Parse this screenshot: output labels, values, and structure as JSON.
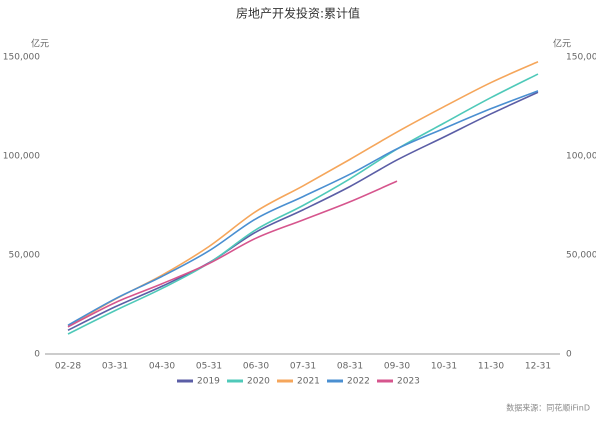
{
  "chart_data": {
    "type": "line",
    "title": "房地产开发投资:累计值",
    "y_unit": "亿元",
    "y2_unit": "亿元",
    "categories": [
      "02-28",
      "03-31",
      "04-30",
      "05-31",
      "06-30",
      "07-31",
      "08-31",
      "09-30",
      "10-31",
      "11-30",
      "12-31"
    ],
    "series": [
      {
        "name": "2019",
        "color": "#5b5ea6",
        "values": [
          12000,
          23800,
          34200,
          46100,
          61600,
          72800,
          84600,
          98000,
          109600,
          121300,
          132200
        ]
      },
      {
        "name": "2020",
        "color": "#4fc9b9",
        "values": [
          10100,
          21900,
          33100,
          45900,
          62800,
          75000,
          88500,
          103500,
          116600,
          129500,
          141400
        ]
      },
      {
        "name": "2021",
        "color": "#f5a65b",
        "values": [
          13900,
          27600,
          39800,
          54300,
          72000,
          84900,
          98300,
          112100,
          124900,
          137100,
          147600
        ]
      },
      {
        "name": "2022",
        "color": "#4a8fd1",
        "values": [
          14500,
          27800,
          39200,
          52100,
          68300,
          79500,
          90800,
          103600,
          113900,
          123900,
          132900
        ]
      },
      {
        "name": "2023",
        "color": "#d6558d",
        "values": [
          13700,
          25900,
          35500,
          45700,
          58500,
          67700,
          76900,
          87300,
          null,
          null,
          null
        ]
      }
    ],
    "ylim": [
      0,
      150000
    ],
    "yticks": [
      0,
      {
        "value": 50000,
        "label": "50,000"
      },
      {
        "value": 100000,
        "label": "100,000"
      },
      {
        "value": 150000,
        "label": "150,000"
      }
    ],
    "y2lim": [
      0,
      150000
    ],
    "y2ticks": [
      0,
      {
        "value": 50000,
        "label": "50,000"
      },
      {
        "value": 100000,
        "label": "100,000"
      },
      {
        "value": 150000,
        "label": "150,000"
      }
    ],
    "grid": false,
    "legend": "bottom",
    "source": "数据来源：同花顺iFinD"
  }
}
